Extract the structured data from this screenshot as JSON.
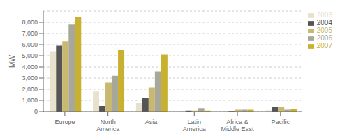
{
  "chart_data": {
    "type": "bar",
    "categories": [
      "Europe",
      "North America",
      "Asia",
      "Latin America",
      "Africa & Middle East",
      "Pacific"
    ],
    "series": [
      {
        "name": "2003",
        "color": "#e8e2cc",
        "values": [
          5400,
          1800,
          750,
          50,
          30,
          100
        ]
      },
      {
        "name": "2004",
        "color": "#555555",
        "values": [
          5900,
          500,
          1250,
          80,
          50,
          380
        ]
      },
      {
        "name": "2005",
        "color": "#c8b870",
        "values": [
          6300,
          2600,
          2150,
          80,
          150,
          420
        ]
      },
      {
        "name": "2006",
        "color": "#a8a89a",
        "values": [
          7800,
          3200,
          3600,
          300,
          160,
          160
        ]
      },
      {
        "name": "2007",
        "color": "#c8b030",
        "values": [
          8500,
          5500,
          5100,
          80,
          150,
          190
        ]
      }
    ],
    "ylabel": "MW",
    "ylim": [
      0,
      9000
    ],
    "yticks": [
      0,
      {
        "value": 1000,
        "label": "1,000"
      },
      {
        "value": 2000,
        "label": "2,000"
      },
      {
        "value": 3000,
        "label": "3,000"
      },
      {
        "value": 4000,
        "label": "4,000"
      },
      {
        "value": 5000,
        "label": "5,000"
      },
      {
        "value": 6000,
        "label": "6,000"
      },
      {
        "value": 7000,
        "label": "7,000"
      },
      {
        "value": 8000,
        "label": "8,000"
      }
    ],
    "grid": true,
    "legend": "upper right"
  }
}
